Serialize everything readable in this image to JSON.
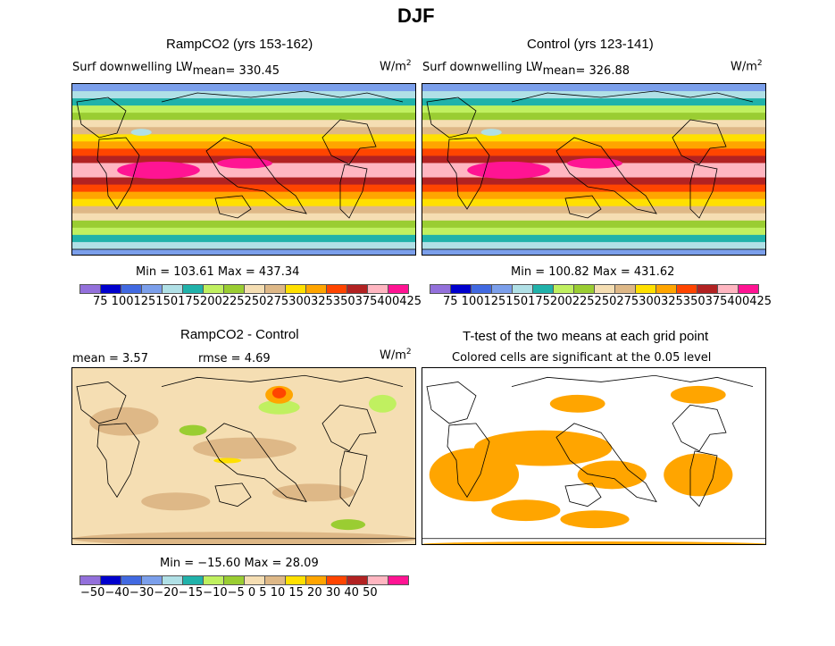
{
  "figure_title": "DJF",
  "units_label": "W/m",
  "units_exp": "2",
  "panels": [
    {
      "title": "RampCO2 (yrs 153-162)",
      "subtitle": "Surf downwelling LW",
      "mean_label": "mean= 330.45",
      "minmax": "Min = 103.61  Max = 437.34"
    },
    {
      "title": "Control (yrs 123-141)",
      "subtitle": "Surf downwelling LW",
      "mean_label": "mean= 326.88",
      "minmax": "Min = 100.82  Max = 431.62"
    },
    {
      "title": "RampCO2 - Control",
      "mean_label": "mean =    3.57",
      "rmse_label": "rmse =    4.69",
      "minmax": "Min = −15.60  Max =   28.09"
    },
    {
      "title": "T-test of the two means at each grid point",
      "subtitle": "Colored cells are significant at the 0.05 level"
    }
  ],
  "colorbar_colors": [
    "#9370DB",
    "#0000CD",
    "#4169E1",
    "#7B9FEB",
    "#B0E0E6",
    "#20B2AA",
    "#C0F060",
    "#9ACD32",
    "#F5DEB3",
    "#DEB887",
    "#FFE000",
    "#FFA500",
    "#FF4500",
    "#B22222",
    "#FFB6C1",
    "#FF1493"
  ],
  "colorbar_abs_labels": "75 1001251501752002252502753003253503754004 25",
  "colorbar_abs_text": "75 100125150175200225250275300325350375400425",
  "colorbar_diff_text": "−50−40−30−20−15−10−5  0   5  10  15  20  30  40  50",
  "significance_color": "#FFA500"
}
